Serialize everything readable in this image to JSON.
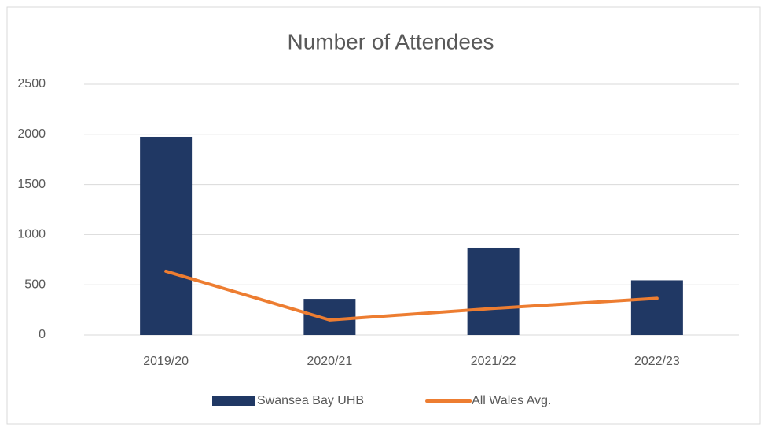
{
  "chart_data": {
    "type": "bar",
    "title": "Number of Attendees",
    "categories": [
      "2019/20",
      "2020/21",
      "2021/22",
      "2022/23"
    ],
    "series": [
      {
        "name": "Swansea Bay UHB",
        "type": "bar",
        "color": "#203864",
        "values": [
          1975,
          360,
          870,
          545
        ]
      },
      {
        "name": "All Wales Avg.",
        "type": "line",
        "color": "#ed7d31",
        "values": [
          635,
          150,
          265,
          365
        ]
      }
    ],
    "ylim": [
      0,
      2500
    ],
    "yticks": [
      0,
      500,
      1000,
      1500,
      2000,
      2500
    ],
    "grid": true,
    "legend": "bottom"
  }
}
